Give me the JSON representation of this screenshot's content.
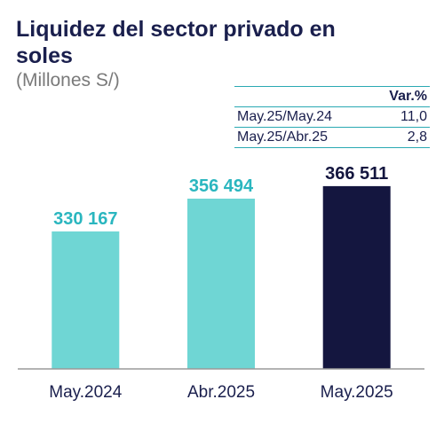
{
  "title": "Liquidez del sector privado en soles",
  "subtitle": "(Millones S/)",
  "variation_table": {
    "header": "Var.%",
    "rows": [
      {
        "period": "May.25/May.24",
        "value": "11,0"
      },
      {
        "period": "May.25/Abr.25",
        "value": "2,8"
      }
    ]
  },
  "chart_data": {
    "type": "bar",
    "categories": [
      "May.2024",
      "Abr.2025",
      "May.2025"
    ],
    "values": [
      330167,
      356494,
      366511
    ],
    "value_labels": [
      "330 167",
      "356 494",
      "366 511"
    ],
    "title": "Liquidez del sector privado en soles",
    "subtitle": "(Millones S/)",
    "xlabel": "",
    "ylabel": "",
    "ylim": [
      220000,
      370000
    ],
    "grid": false,
    "colors": [
      "#6fd6d4",
      "#6fd6d4",
      "#14163f"
    ],
    "label_colors": [
      "#2ab6bf",
      "#2ab6bf",
      "#14163f"
    ]
  }
}
